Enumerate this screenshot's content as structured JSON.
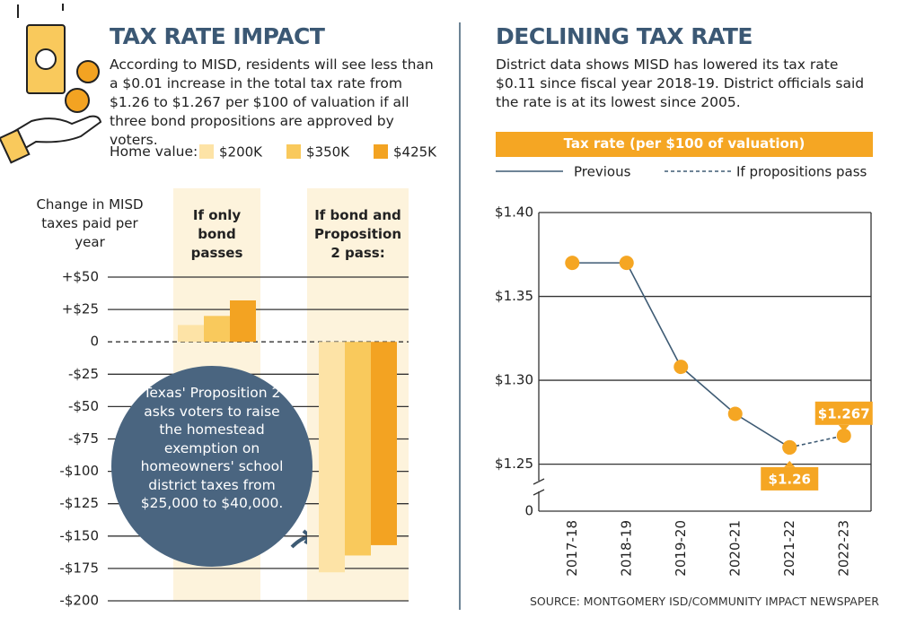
{
  "chart_data": [
    {
      "type": "bar",
      "title": "TAX RATE IMPACT",
      "subtitle": "According to MISD, residents will see less than a $0.01 increase in the total tax rate from $1.26 to $1.267 per $100 of valuation if all three bond propositions are approved by voters.",
      "legend_title": "Home value:",
      "y_label": "Change in MISD taxes paid per year",
      "categories": [
        "If only bond passes",
        "If bond and Proposition 2 pass:"
      ],
      "series": [
        {
          "name": "$200K",
          "color": "#fde3a6",
          "values": [
            13,
            -178
          ]
        },
        {
          "name": "$350K",
          "color": "#f9c95c",
          "values": [
            20,
            -165
          ]
        },
        {
          "name": "$425K",
          "color": "#f3a322",
          "values": [
            32,
            -157
          ]
        }
      ],
      "ylim": [
        -200,
        50
      ],
      "yticks": [
        {
          "value": 50,
          "label": "+$50"
        },
        {
          "value": 25,
          "label": "+$25"
        },
        0,
        {
          "value": -25,
          "label": "-$25"
        },
        {
          "value": -50,
          "label": "-$50"
        },
        {
          "value": -75,
          "label": "-$75"
        },
        {
          "value": -100,
          "label": "-$100"
        },
        {
          "value": -125,
          "label": "-$125"
        },
        {
          "value": -150,
          "label": "-$150"
        },
        {
          "value": -175,
          "label": "-$175"
        },
        {
          "value": -200,
          "label": "-$200"
        }
      ],
      "grid": true,
      "band_color": "#fdf3dc",
      "annotation": "Texas' Proposition 2 asks voters to raise the homestead exemption on homeowners' school district taxes from $25,000 to $40,000."
    },
    {
      "type": "line",
      "title": "DECLINING TAX RATE",
      "subtitle": "District data shows MISD has lowered its tax rate $0.11 since fiscal year 2018-19. District officials said the rate is at its lowest since 2005.",
      "y_label": "Tax rate (per $100 of valuation)",
      "categories": [
        "2017-18",
        "2018-19",
        "2019-20",
        "2020-21",
        "2021-22",
        "2022-23"
      ],
      "series": [
        {
          "name": "Previous",
          "color": "#3e5b74",
          "style": "solid",
          "values": [
            1.37,
            1.37,
            1.308,
            1.28,
            1.26,
            null
          ],
          "value_labels": [
            null,
            null,
            null,
            null,
            "$1.26",
            null
          ]
        },
        {
          "name": "If propositions pass",
          "color": "#3e5b74",
          "style": "dashed",
          "values": [
            null,
            null,
            null,
            null,
            1.26,
            1.267
          ],
          "value_labels": [
            null,
            null,
            null,
            null,
            null,
            "$1.267"
          ]
        }
      ],
      "marker_color": "#f5a623",
      "ylim": [
        1.222,
        1.4
      ],
      "yticks": [
        {
          "value": 1.25,
          "label": "$1.25"
        },
        {
          "value": 1.3,
          "label": "$1.30"
        },
        {
          "value": 1.35,
          "label": "$1.35"
        },
        {
          "value": 1.4,
          "label": "$1.40"
        }
      ],
      "y_break_label": "0",
      "grid": true
    }
  ],
  "source": "SOURCE: MONTGOMERY ISD/COMMUNITY IMPACT NEWSPAPER"
}
